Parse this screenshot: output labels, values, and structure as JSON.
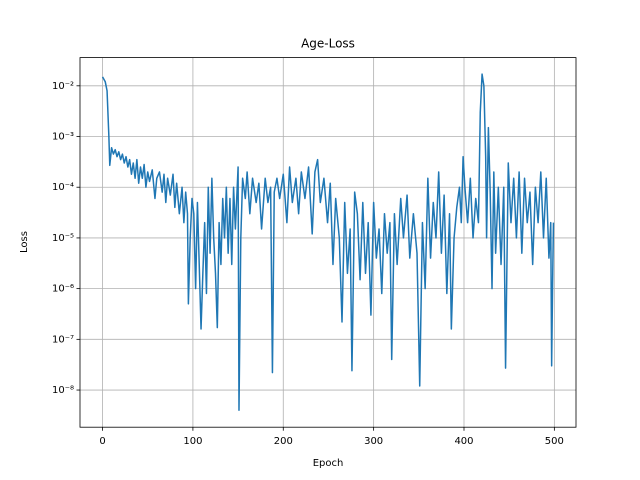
{
  "chart_data": {
    "type": "line",
    "title": "Age-Loss",
    "x_label": "Epoch",
    "y_label": "Loss",
    "color": "#1f77b4",
    "grid": true,
    "log_y": true,
    "xlim": [
      -24.95,
      523.95
    ],
    "xticks": [
      0,
      100,
      200,
      300,
      400,
      500
    ],
    "ylim": [
      1.85e-09,
      0.036
    ],
    "yticks": [
      {
        "value": 1e-08,
        "label": "10⁻⁸"
      },
      {
        "value": 1e-07,
        "label": "10⁻⁷"
      },
      {
        "value": 1e-06,
        "label": "10⁻⁶"
      },
      {
        "value": 1e-05,
        "label": "10⁻⁵"
      },
      {
        "value": 0.0001,
        "label": "10⁻⁴"
      },
      {
        "value": 0.001,
        "label": "10⁻³"
      },
      {
        "value": 0.01,
        "label": "10⁻²"
      }
    ],
    "x": [
      0,
      3,
      5,
      7,
      8,
      10,
      12,
      14,
      16,
      18,
      20,
      22,
      24,
      26,
      28,
      30,
      32,
      34,
      36,
      38,
      40,
      42,
      44,
      46,
      48,
      50,
      52,
      55,
      58,
      60,
      63,
      66,
      68,
      70,
      72,
      75,
      78,
      80,
      82,
      85,
      88,
      90,
      92,
      94,
      95,
      97,
      99,
      101,
      103,
      105,
      107,
      109,
      111,
      113,
      115,
      117,
      119,
      121,
      123,
      125,
      127,
      129,
      131,
      133,
      135,
      137,
      139,
      141,
      143,
      145,
      147,
      150,
      151,
      153,
      155,
      158,
      160,
      163,
      166,
      170,
      173,
      176,
      180,
      183,
      186,
      188,
      190,
      193,
      196,
      200,
      204,
      207,
      210,
      214,
      217,
      220,
      224,
      228,
      232,
      235,
      238,
      241,
      245,
      249,
      252,
      255,
      258,
      262,
      265,
      268,
      271,
      274,
      276,
      279,
      282,
      285,
      288,
      291,
      294,
      297,
      300,
      303,
      306,
      309,
      312,
      315,
      318,
      320,
      323,
      326,
      330,
      333,
      337,
      340,
      344,
      348,
      351,
      354,
      357,
      360,
      363,
      366,
      369,
      372,
      375,
      378,
      381,
      384,
      386,
      389,
      392,
      395,
      397,
      399,
      401,
      404,
      407,
      410,
      413,
      416,
      418,
      420,
      422,
      424,
      425,
      427,
      429,
      431,
      433,
      435,
      438,
      441,
      444,
      446,
      449,
      452,
      455,
      458,
      461,
      464,
      467,
      470,
      473,
      476,
      479,
      482,
      485,
      488,
      491,
      494,
      496,
      497,
      498,
      499
    ],
    "values": [
      0.015,
      0.012,
      0.008,
      0.001,
      0.00027,
      0.0006,
      0.00045,
      0.00055,
      0.0004,
      0.0005,
      0.00035,
      0.00045,
      0.0003,
      0.0004,
      0.00025,
      0.00035,
      0.00018,
      0.0003,
      0.00015,
      0.00035,
      0.00012,
      0.00025,
      0.00015,
      0.00028,
      0.0001,
      0.0002,
      0.00013,
      0.00022,
      6e-05,
      0.00015,
      0.0002,
      8e-05,
      0.00018,
      5e-05,
      0.00015,
      7e-05,
      0.00018,
      4e-05,
      0.00012,
      3e-05,
      0.0001,
      2e-05,
      8e-05,
      3e-05,
      5e-07,
      1e-05,
      6e-05,
      3e-05,
      1e-06,
      5e-05,
      3e-06,
      1.6e-07,
      2e-06,
      2e-05,
      8e-07,
      0.0001,
      5e-06,
      0.00015,
      1e-05,
      2e-06,
      1.7e-07,
      2e-05,
      3e-06,
      6e-05,
      1e-05,
      0.0001,
      5e-06,
      6e-05,
      3e-06,
      0.0001,
      1.5e-05,
      0.00025,
      4e-09,
      1e-05,
      0.00015,
      6e-05,
      0.0002,
      3e-05,
      0.00015,
      5e-05,
      0.00012,
      1.5e-05,
      0.00015,
      5e-05,
      0.0001,
      2.2e-08,
      8e-05,
      0.00015,
      6e-05,
      0.00018,
      2e-05,
      0.00025,
      5e-05,
      0.00015,
      3e-05,
      0.0002,
      6e-05,
      0.00025,
      1.2e-05,
      0.0002,
      0.00035,
      5e-05,
      0.00015,
      2e-05,
      0.00012,
      3e-06,
      6e-05,
      1e-05,
      2.2e-07,
      5e-05,
      2e-06,
      1.5e-05,
      2.4e-08,
      8e-05,
      3e-05,
      1.5e-06,
      5e-05,
      2e-06,
      2e-05,
      3e-07,
      5e-05,
      4e-06,
      1.5e-05,
      8e-07,
      3e-05,
      5e-06,
      2e-05,
      4e-08,
      3e-05,
      3e-06,
      6e-05,
      1e-05,
      7e-05,
      4e-06,
      3e-05,
      5e-06,
      1.2e-08,
      2e-05,
      1e-06,
      0.00015,
      4e-06,
      5e-05,
      1e-05,
      0.0002,
      5e-06,
      7e-05,
      8e-07,
      3e-05,
      1.6e-07,
      1e-05,
      4e-05,
      0.0001,
      2e-05,
      0.0004,
      0.0001,
      2e-05,
      0.00015,
      1e-05,
      6e-05,
      2e-05,
      0.003,
      0.017,
      0.01,
      0.0004,
      1e-05,
      0.0015,
      8e-05,
      1e-06,
      0.0002,
      5e-06,
      0.0001,
      3e-06,
      0.0001,
      2.7e-08,
      0.0003,
      2e-05,
      0.00015,
      1e-05,
      0.0002,
      5e-06,
      0.00015,
      2e-05,
      8e-05,
      3e-06,
      0.0001,
      2e-05,
      0.0002,
      1e-05,
      0.00015,
      4e-06,
      2e-05,
      3e-08,
      1e-06,
      2e-05
    ]
  }
}
